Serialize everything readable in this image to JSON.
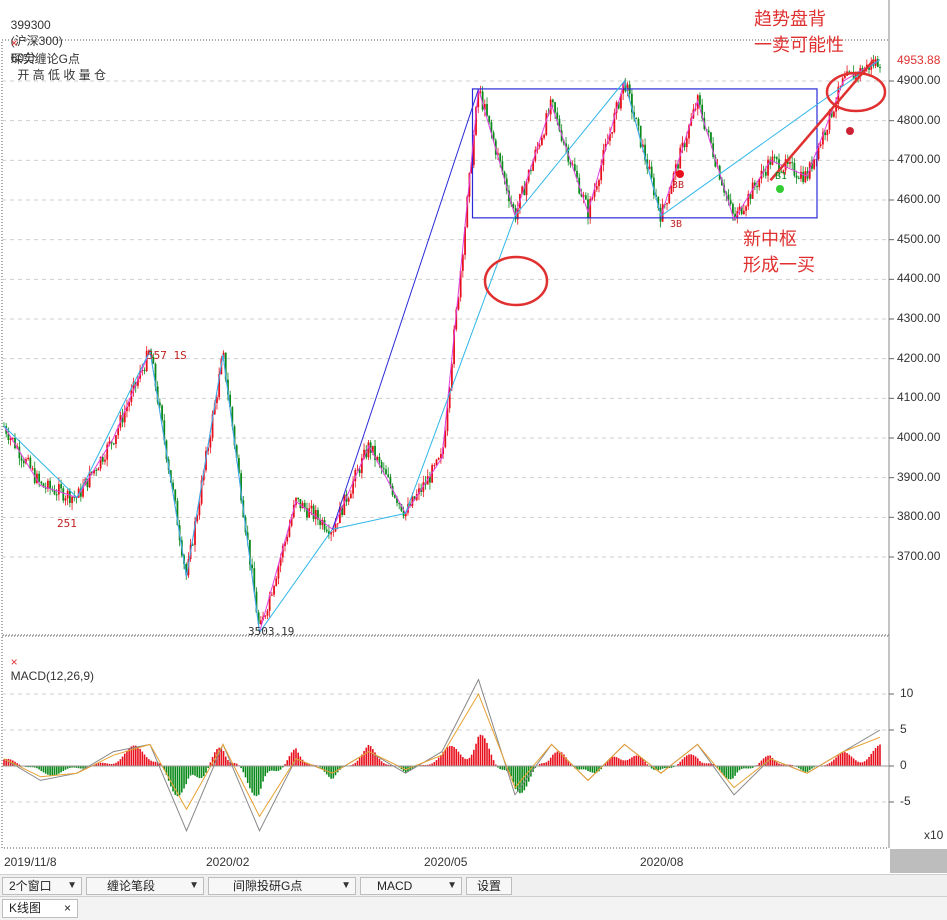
{
  "header": {
    "symbol": "399300",
    "name": "(沪深300)",
    "period": "60分",
    "fields": "开 高 低 收 量 仓",
    "indicator_name": "琛实缠论G点",
    "close_mark": "×"
  },
  "macd_header": {
    "label": "MACD(12,26,9)",
    "close_mark": "×"
  },
  "price_axis": {
    "ticks": [
      "4900.00",
      "4800.00",
      "4700.00",
      "4600.00",
      "4500.00",
      "4400.00",
      "4300.00",
      "4200.00",
      "4100.00",
      "4000.00",
      "3900.00",
      "3800.00",
      "3700.00"
    ],
    "last_price": "4953.88"
  },
  "macd_axis": {
    "ticks": [
      "10",
      "5",
      "0",
      "-5"
    ],
    "unit": "x10"
  },
  "x_axis": {
    "ticks": [
      "2019/11/8",
      "2020/02",
      "2020/05",
      "2020/08"
    ]
  },
  "annotations": {
    "top_right": [
      "趋势盘背",
      "一卖可能性"
    ],
    "middle": [
      "新中枢",
      "形成一买"
    ],
    "high_label": "557 1S",
    "low_label_251": "251",
    "low_label": "3503.19",
    "label_3b_1": "3B",
    "label_3b_2": "3B",
    "label_b1": "B1"
  },
  "chart_data": [
    {
      "type": "line",
      "title": "399300 (沪深300) 60分",
      "xlabel": "",
      "ylabel": "",
      "x": [
        "2019/11/8",
        "2019/11",
        "2019/12",
        "2020/01",
        "2020/02",
        "2020/02",
        "2020/03",
        "2020/03",
        "2020/04",
        "2020/04",
        "2020/05",
        "2020/05",
        "2020/06",
        "2020/06",
        "2020/07",
        "2020/07",
        "2020/07",
        "2020/08",
        "2020/08",
        "2020/09",
        "2020/09",
        "2020/10",
        "2020/11",
        "2020/11",
        "2020/12"
      ],
      "series": [
        {
          "name": "",
          "values": [
            4030,
            3880,
            3850,
            4000,
            4220,
            3650,
            4210,
            3510,
            3840,
            3770,
            3980,
            3810,
            3950,
            4880,
            4560,
            4840,
            4570,
            4900,
            4560,
            4850,
            4550,
            4700,
            4660,
            4900,
            4953.88
          ]
        }
      ],
      "ylim": [
        3500,
        4980
      ],
      "grid": true,
      "pivot_box": {
        "low": 4555,
        "high": 4880
      }
    },
    {
      "type": "bar",
      "title": "MACD(12,26,9)",
      "xlabel": "",
      "ylabel": "",
      "categories": [
        "2019/11/8",
        "2019/11",
        "2019/12",
        "2020/01",
        "2020/02",
        "2020/02",
        "2020/03",
        "2020/03",
        "2020/04",
        "2020/04",
        "2020/05",
        "2020/05",
        "2020/06",
        "2020/06",
        "2020/07",
        "2020/07",
        "2020/07",
        "2020/08",
        "2020/08",
        "2020/09",
        "2020/09",
        "2020/10",
        "2020/11",
        "2020/11",
        "2020/12"
      ],
      "series": [
        {
          "name": "",
          "values": [
            1.5,
            -1.5,
            -1,
            1.5,
            4,
            -8,
            5,
            -6,
            3,
            -2,
            3,
            -1,
            2,
            6,
            -6,
            4,
            -3,
            4,
            -2,
            3,
            -3,
            2,
            -1,
            2,
            3
          ]
        },
        {
          "name": "",
          "values": [
            1,
            -2,
            -1,
            2,
            3,
            -9,
            3,
            -9,
            1,
            -1,
            2,
            -1,
            2,
            12,
            -4,
            3,
            -2,
            3,
            -1,
            3,
            -4,
            1,
            -1,
            2,
            5
          ]
        },
        {
          "name": "",
          "values": [
            1,
            -1.5,
            -1,
            1.5,
            3,
            -6,
            3,
            -7,
            1,
            -1,
            2,
            -0.5,
            1.5,
            10,
            -3,
            3,
            -2,
            3,
            -1,
            3,
            -3,
            1,
            -1,
            2,
            4
          ]
        }
      ],
      "ylim": [
        -10,
        16
      ],
      "grid": true
    }
  ],
  "toolbar": {
    "windows": "2个窗口",
    "strokes": "缠论笔段",
    "indicator": "间隙投研G点",
    "macd": "MACD",
    "settings": "设置"
  },
  "tabs": {
    "kline": "K线图",
    "close": "×"
  },
  "colors": {
    "up": "#e8101c",
    "down": "#0a8a1a",
    "stroke": "#2a2ad8",
    "segment": "#2fb6e8",
    "pink": "#e040e0",
    "annotation": "#e03030",
    "dif": "#888888",
    "dea": "#e8a030"
  }
}
